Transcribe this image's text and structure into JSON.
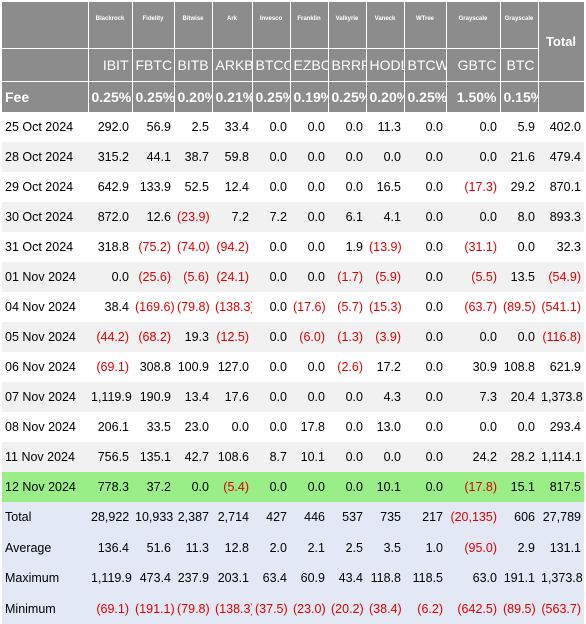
{
  "columns": [
    {
      "issuer": "Blackrock",
      "ticker": "IBIT",
      "fee": "0.25%"
    },
    {
      "issuer": "Fidelity",
      "ticker": "FBTC",
      "fee": "0.25%"
    },
    {
      "issuer": "Bitwise",
      "ticker": "BITB",
      "fee": "0.20%"
    },
    {
      "issuer": "Ark",
      "ticker": "ARKB",
      "fee": "0.21%"
    },
    {
      "issuer": "Invesco",
      "ticker": "BTCO",
      "fee": "0.25%"
    },
    {
      "issuer": "Franklin",
      "ticker": "EZBC",
      "fee": "0.19%"
    },
    {
      "issuer": "Valkyrie",
      "ticker": "BRRR",
      "fee": "0.25%"
    },
    {
      "issuer": "Vaneck",
      "ticker": "HODL",
      "fee": "0.20%"
    },
    {
      "issuer": "WTree",
      "ticker": "BTCW",
      "fee": "0.25%"
    },
    {
      "issuer": "Grayscale",
      "ticker": "GBTC",
      "fee": "1.50%"
    },
    {
      "issuer": "Grayscale",
      "ticker": "BTC",
      "fee": "0.15%"
    }
  ],
  "total_header": "Total",
  "fee_label": "Fee",
  "rows": [
    {
      "label": "25 Oct 2024",
      "style": "plain",
      "values": [
        "292.0",
        "56.9",
        "2.5",
        "33.4",
        "0.0",
        "0.0",
        "0.0",
        "11.3",
        "0.0",
        "0.0",
        "5.9",
        "402.0"
      ]
    },
    {
      "label": "28 Oct 2024",
      "style": "alt",
      "values": [
        "315.2",
        "44.1",
        "38.7",
        "59.8",
        "0.0",
        "0.0",
        "0.0",
        "0.0",
        "0.0",
        "0.0",
        "21.6",
        "479.4"
      ]
    },
    {
      "label": "29 Oct 2024",
      "style": "plain",
      "values": [
        "642.9",
        "133.9",
        "52.5",
        "12.4",
        "0.0",
        "0.0",
        "0.0",
        "16.5",
        "0.0",
        "(17.3)",
        "29.2",
        "870.1"
      ]
    },
    {
      "label": "30 Oct 2024",
      "style": "alt",
      "values": [
        "872.0",
        "12.6",
        "(23.9)",
        "7.2",
        "7.2",
        "0.0",
        "6.1",
        "4.1",
        "0.0",
        "0.0",
        "8.0",
        "893.3"
      ]
    },
    {
      "label": "31 Oct 2024",
      "style": "plain",
      "values": [
        "318.8",
        "(75.2)",
        "(74.0)",
        "(94.2)",
        "0.0",
        "0.0",
        "1.9",
        "(13.9)",
        "0.0",
        "(31.1)",
        "0.0",
        "32.3"
      ]
    },
    {
      "label": "01 Nov 2024",
      "style": "alt",
      "values": [
        "0.0",
        "(25.6)",
        "(5.6)",
        "(24.1)",
        "0.0",
        "0.0",
        "(1.7)",
        "(5.9)",
        "0.0",
        "(5.5)",
        "13.5",
        "(54.9)"
      ]
    },
    {
      "label": "04 Nov 2024",
      "style": "plain",
      "values": [
        "38.4",
        "(169.6)",
        "(79.8)",
        "(138.3)",
        "0.0",
        "(17.6)",
        "(5.7)",
        "(15.3)",
        "0.0",
        "(63.7)",
        "(89.5)",
        "(541.1)"
      ]
    },
    {
      "label": "05 Nov 2024",
      "style": "alt",
      "values": [
        "(44.2)",
        "(68.2)",
        "19.3",
        "(12.5)",
        "0.0",
        "(6.0)",
        "(1.3)",
        "(3.9)",
        "0.0",
        "0.0",
        "0.0",
        "(116.8)"
      ]
    },
    {
      "label": "06 Nov 2024",
      "style": "plain",
      "values": [
        "(69.1)",
        "308.8",
        "100.9",
        "127.0",
        "0.0",
        "0.0",
        "(2.6)",
        "17.2",
        "0.0",
        "30.9",
        "108.8",
        "621.9"
      ]
    },
    {
      "label": "07 Nov 2024",
      "style": "alt",
      "values": [
        "1,119.9",
        "190.9",
        "13.4",
        "17.6",
        "0.0",
        "0.0",
        "0.0",
        "4.3",
        "0.0",
        "7.3",
        "20.4",
        "1,373.8"
      ]
    },
    {
      "label": "08 Nov 2024",
      "style": "plain",
      "values": [
        "206.1",
        "33.5",
        "23.0",
        "0.0",
        "0.0",
        "17.8",
        "0.0",
        "13.0",
        "0.0",
        "0.0",
        "0.0",
        "293.4"
      ]
    },
    {
      "label": "11 Nov 2024",
      "style": "alt",
      "values": [
        "756.5",
        "135.1",
        "42.7",
        "108.6",
        "8.7",
        "10.1",
        "0.0",
        "0.0",
        "0.0",
        "24.2",
        "28.2",
        "1,114.1"
      ]
    },
    {
      "label": "12 Nov 2024",
      "style": "hl",
      "values": [
        "778.3",
        "37.2",
        "0.0",
        "(5.4)",
        "0.0",
        "0.0",
        "0.0",
        "10.1",
        "0.0",
        "(17.8)",
        "15.1",
        "817.5"
      ]
    }
  ],
  "summary": [
    {
      "label": "Total",
      "values": [
        "28,922",
        "10,933",
        "2,387",
        "2,714",
        "427",
        "446",
        "537",
        "735",
        "217",
        "(20,135)",
        "606",
        "27,789"
      ]
    },
    {
      "label": "Average",
      "values": [
        "136.4",
        "51.6",
        "11.3",
        "12.8",
        "2.0",
        "2.1",
        "2.5",
        "3.5",
        "1.0",
        "(95.0)",
        "2.9",
        "131.1"
      ]
    },
    {
      "label": "Maximum",
      "values": [
        "1,119.9",
        "473.4",
        "237.9",
        "203.1",
        "63.4",
        "60.9",
        "43.4",
        "118.8",
        "118.5",
        "63.0",
        "191.1",
        "1,373.8"
      ]
    },
    {
      "label": "Minimum",
      "values": [
        "(69.1)",
        "(191.1)",
        "(79.8)",
        "(138.3)",
        "(37.5)",
        "(23.0)",
        "(20.2)",
        "(38.4)",
        "(6.2)",
        "(642.5)",
        "(89.5)",
        "(563.7)"
      ]
    }
  ]
}
